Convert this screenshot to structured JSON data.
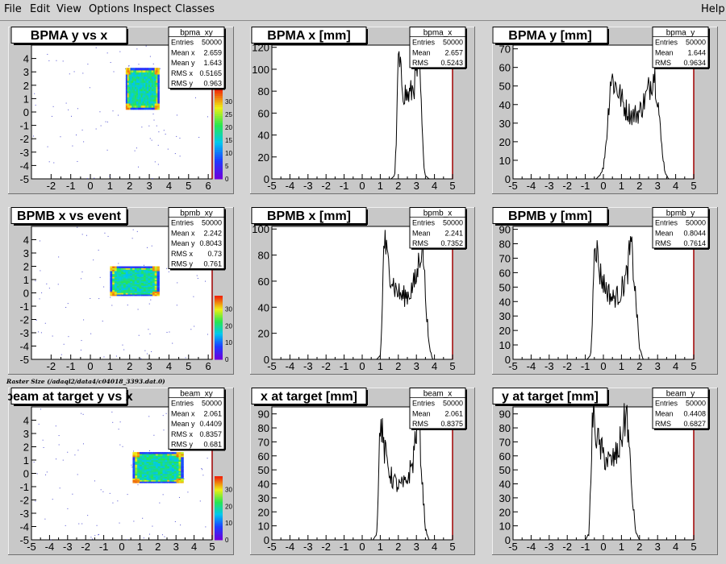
{
  "menu": {
    "file": "File",
    "edit": "Edit",
    "view": "View",
    "options": "Options",
    "inspect": "Inspect",
    "classes": "Classes",
    "help": "Help"
  },
  "caption": "Raster Size (/adaql2/data4/c04018_3393.dat.0)",
  "colors": {
    "pad_background": "#c8c8c8",
    "frame_fill": "#ffffff",
    "axis_right_line": "#a00000",
    "histogram_line": "#000000"
  },
  "panels": [
    {
      "kind": "2d",
      "title": "BPMA y vs x",
      "stats": {
        "name": "bpma_xy",
        "rows": [
          [
            "Entries",
            "50000"
          ],
          [
            "Mean x",
            "2.659"
          ],
          [
            "Mean y",
            "1.643"
          ],
          [
            "RMS x",
            "0.5165"
          ],
          [
            "RMS y",
            "0.963"
          ]
        ]
      },
      "xticks": [
        "-2",
        "-1",
        "0",
        "1",
        "2",
        "3",
        "4",
        "5",
        "6"
      ],
      "yticks": [
        "4",
        "3",
        "2",
        "1",
        "0",
        "-1",
        "-2",
        "-3",
        "-4",
        "-5"
      ],
      "zticks": [
        "30",
        "25",
        "20",
        "15",
        "10",
        "5",
        "0"
      ]
    },
    {
      "kind": "1d",
      "title": "BPMA x [mm]",
      "stats": {
        "name": "bpma_x",
        "rows": [
          [
            "Entries",
            "50000"
          ],
          [
            "Mean",
            "2.657"
          ],
          [
            "RMS",
            "0.5243"
          ]
        ]
      },
      "xticks": [
        "-5",
        "-4",
        "-3",
        "-2",
        "-1",
        "0",
        "1",
        "2",
        "3",
        "4",
        "5"
      ],
      "yticks": [
        "120",
        "100",
        "80",
        "60",
        "40",
        "20",
        "0"
      ]
    },
    {
      "kind": "1d",
      "title": "BPMA y [mm]",
      "stats": {
        "name": "bpma_y",
        "rows": [
          [
            "Entries",
            "50000"
          ],
          [
            "Mean",
            "1.644"
          ],
          [
            "RMS",
            "0.9634"
          ]
        ]
      },
      "xticks": [
        "-5",
        "-4",
        "-3",
        "-2",
        "-1",
        "0",
        "1",
        "2",
        "3",
        "4",
        "5"
      ],
      "yticks": [
        "70",
        "60",
        "50",
        "40",
        "30",
        "20",
        "10",
        "0"
      ]
    },
    {
      "kind": "2d",
      "title": "BPMB x vs event",
      "stats": {
        "name": "bpmb_xy",
        "rows": [
          [
            "Entries",
            "50000"
          ],
          [
            "Mean x",
            "2.242"
          ],
          [
            "Mean y",
            "0.8043"
          ],
          [
            "RMS x",
            "0.73"
          ],
          [
            "RMS y",
            "0.761"
          ]
        ]
      },
      "xticks": [
        "-2",
        "-1",
        "0",
        "1",
        "2",
        "3",
        "4",
        "5",
        "6"
      ],
      "yticks": [
        "4",
        "3",
        "2",
        "1",
        "0",
        "-1",
        "-2",
        "-3",
        "-4",
        "-5"
      ],
      "zticks": [
        "30",
        "20",
        "10",
        "0"
      ]
    },
    {
      "kind": "1d",
      "title": "BPMB x [mm]",
      "stats": {
        "name": "bpmb_x",
        "rows": [
          [
            "Entries",
            "50000"
          ],
          [
            "Mean",
            "2.241"
          ],
          [
            "RMS",
            "0.7352"
          ]
        ]
      },
      "xticks": [
        "-5",
        "-4",
        "-3",
        "-2",
        "-1",
        "0",
        "1",
        "2",
        "3",
        "4",
        "5"
      ],
      "yticks": [
        "100",
        "80",
        "60",
        "40",
        "20",
        "0"
      ]
    },
    {
      "kind": "1d",
      "title": "BPMB y [mm]",
      "stats": {
        "name": "bpmb_y",
        "rows": [
          [
            "Entries",
            "50000"
          ],
          [
            "Mean",
            "0.8044"
          ],
          [
            "RMS",
            "0.7614"
          ]
        ]
      },
      "xticks": [
        "-5",
        "-4",
        "-3",
        "-2",
        "-1",
        "0",
        "1",
        "2",
        "3",
        "4",
        "5"
      ],
      "yticks": [
        "90",
        "80",
        "70",
        "60",
        "50",
        "40",
        "30",
        "20",
        "10",
        "0"
      ]
    },
    {
      "kind": "2d",
      "title": "beam at target y vs x",
      "stats": {
        "name": "beam_xy",
        "rows": [
          [
            "Entries",
            "50000"
          ],
          [
            "Mean x",
            "2.061"
          ],
          [
            "Mean y",
            "0.4409"
          ],
          [
            "RMS x",
            "0.8357"
          ],
          [
            "RMS y",
            "0.681"
          ]
        ]
      },
      "xticks": [
        "-5",
        "-4",
        "-3",
        "-2",
        "-1",
        "0",
        "1",
        "2",
        "3",
        "4",
        "5"
      ],
      "yticks": [
        "4",
        "3",
        "2",
        "1",
        "0",
        "-1",
        "-2",
        "-3",
        "-4",
        "-5"
      ],
      "zticks": [
        "30",
        "20",
        "10",
        "0"
      ]
    },
    {
      "kind": "1d",
      "title": "x at target [mm]",
      "stats": {
        "name": "beam_x",
        "rows": [
          [
            "Entries",
            "50000"
          ],
          [
            "Mean",
            "2.061"
          ],
          [
            "RMS",
            "0.8375"
          ]
        ]
      },
      "xticks": [
        "-5",
        "-4",
        "-3",
        "-2",
        "-1",
        "0",
        "1",
        "2",
        "3",
        "4",
        "5"
      ],
      "yticks": [
        "90",
        "80",
        "70",
        "60",
        "50",
        "40",
        "30",
        "20",
        "10",
        "0"
      ]
    },
    {
      "kind": "1d",
      "title": "y at target [mm]",
      "stats": {
        "name": "beam_y",
        "rows": [
          [
            "Entries",
            "50000"
          ],
          [
            "Mean",
            "0.4408"
          ],
          [
            "RMS",
            "0.6827"
          ]
        ]
      },
      "xticks": [
        "-5",
        "-4",
        "-3",
        "-2",
        "-1",
        "0",
        "1",
        "2",
        "3",
        "4",
        "5"
      ],
      "yticks": [
        "90",
        "80",
        "70",
        "60",
        "50",
        "40",
        "30",
        "20",
        "10",
        "0"
      ]
    }
  ],
  "chart_data": [
    {
      "type": "heatmap",
      "name": "bpma_xy",
      "title": "BPMA y vs x",
      "xlim": [
        -3,
        6.2
      ],
      "ylim": [
        -5,
        5
      ],
      "zlim": [
        0,
        35
      ],
      "core": {
        "x": [
          1.8,
          3.5
        ],
        "y": [
          0.2,
          3.3
        ]
      }
    },
    {
      "type": "line",
      "name": "bpma_x",
      "title": "BPMA x [mm]",
      "xlim": [
        -5,
        5
      ],
      "ylim": [
        0,
        122
      ],
      "x": [
        -5,
        1.6,
        1.8,
        1.9,
        2.0,
        2.1,
        2.3,
        2.5,
        2.7,
        2.9,
        3.1,
        3.2,
        3.3,
        3.4,
        3.5,
        3.7,
        5
      ],
      "y": [
        0,
        0,
        3,
        40,
        112,
        97,
        80,
        75,
        78,
        88,
        100,
        95,
        50,
        15,
        3,
        0,
        0
      ]
    },
    {
      "type": "line",
      "name": "bpma_y",
      "title": "BPMA y [mm]",
      "xlim": [
        -5,
        5
      ],
      "ylim": [
        0,
        72
      ],
      "x": [
        -5,
        -0.4,
        -0.2,
        0.0,
        0.2,
        0.4,
        0.8,
        1.2,
        1.6,
        2.0,
        2.4,
        2.8,
        3.0,
        3.2,
        3.4,
        3.6,
        5
      ],
      "y": [
        0,
        0,
        2,
        6,
        25,
        55,
        48,
        38,
        34,
        36,
        45,
        58,
        45,
        20,
        4,
        0,
        0
      ]
    },
    {
      "type": "heatmap",
      "name": "bpmb_xy",
      "title": "BPMB x vs event",
      "xlim": [
        -3,
        6.2
      ],
      "ylim": [
        -5,
        5
      ],
      "zlim": [
        0,
        38
      ],
      "core": {
        "x": [
          1.0,
          3.5
        ],
        "y": [
          -0.2,
          2.0
        ]
      }
    },
    {
      "type": "line",
      "name": "bpmb_x",
      "title": "BPMB x [mm]",
      "xlim": [
        -5,
        5
      ],
      "ylim": [
        0,
        102
      ],
      "x": [
        -5,
        0.8,
        1.0,
        1.1,
        1.2,
        1.4,
        1.8,
        2.2,
        2.6,
        3.0,
        3.2,
        3.35,
        3.5,
        3.7,
        3.9,
        5
      ],
      "y": [
        0,
        0,
        3,
        30,
        95,
        75,
        55,
        48,
        50,
        62,
        82,
        90,
        50,
        10,
        0,
        0
      ]
    },
    {
      "type": "line",
      "name": "bpmb_y",
      "title": "BPMB y [mm]",
      "xlim": [
        -5,
        5
      ],
      "ylim": [
        0,
        92
      ],
      "x": [
        -5,
        -0.9,
        -0.7,
        -0.6,
        -0.5,
        -0.2,
        0.1,
        0.5,
        0.9,
        1.3,
        1.5,
        1.6,
        1.8,
        2.0,
        2.2,
        5
      ],
      "y": [
        0,
        0,
        3,
        30,
        88,
        60,
        50,
        42,
        45,
        58,
        78,
        72,
        40,
        8,
        0,
        0
      ]
    },
    {
      "type": "heatmap",
      "name": "beam_xy",
      "title": "beam at target y vs x",
      "xlim": [
        -5,
        5
      ],
      "ylim": [
        -5,
        5
      ],
      "zlim": [
        0,
        38
      ],
      "core": {
        "x": [
          0.6,
          3.4
        ],
        "y": [
          -0.7,
          1.6
        ]
      }
    },
    {
      "type": "line",
      "name": "beam_x",
      "title": "x at target [mm]",
      "xlim": [
        -5,
        5
      ],
      "ylim": [
        0,
        95
      ],
      "x": [
        -5,
        0.6,
        0.8,
        0.9,
        1.0,
        1.2,
        1.6,
        2.0,
        2.4,
        2.8,
        3.0,
        3.15,
        3.3,
        3.5,
        3.7,
        5
      ],
      "y": [
        0,
        0,
        4,
        40,
        88,
        65,
        45,
        38,
        40,
        55,
        80,
        88,
        45,
        8,
        0,
        0
      ]
    },
    {
      "type": "line",
      "name": "beam_y",
      "title": "y at target [mm]",
      "xlim": [
        -5,
        5
      ],
      "ylim": [
        0,
        95
      ],
      "x": [
        -5,
        -1.0,
        -0.8,
        -0.7,
        -0.6,
        -0.3,
        0.0,
        0.4,
        0.8,
        1.1,
        1.3,
        1.4,
        1.6,
        1.8,
        2.0,
        5
      ],
      "y": [
        0,
        0,
        4,
        40,
        90,
        70,
        60,
        55,
        62,
        80,
        92,
        70,
        30,
        5,
        0,
        0
      ]
    }
  ]
}
